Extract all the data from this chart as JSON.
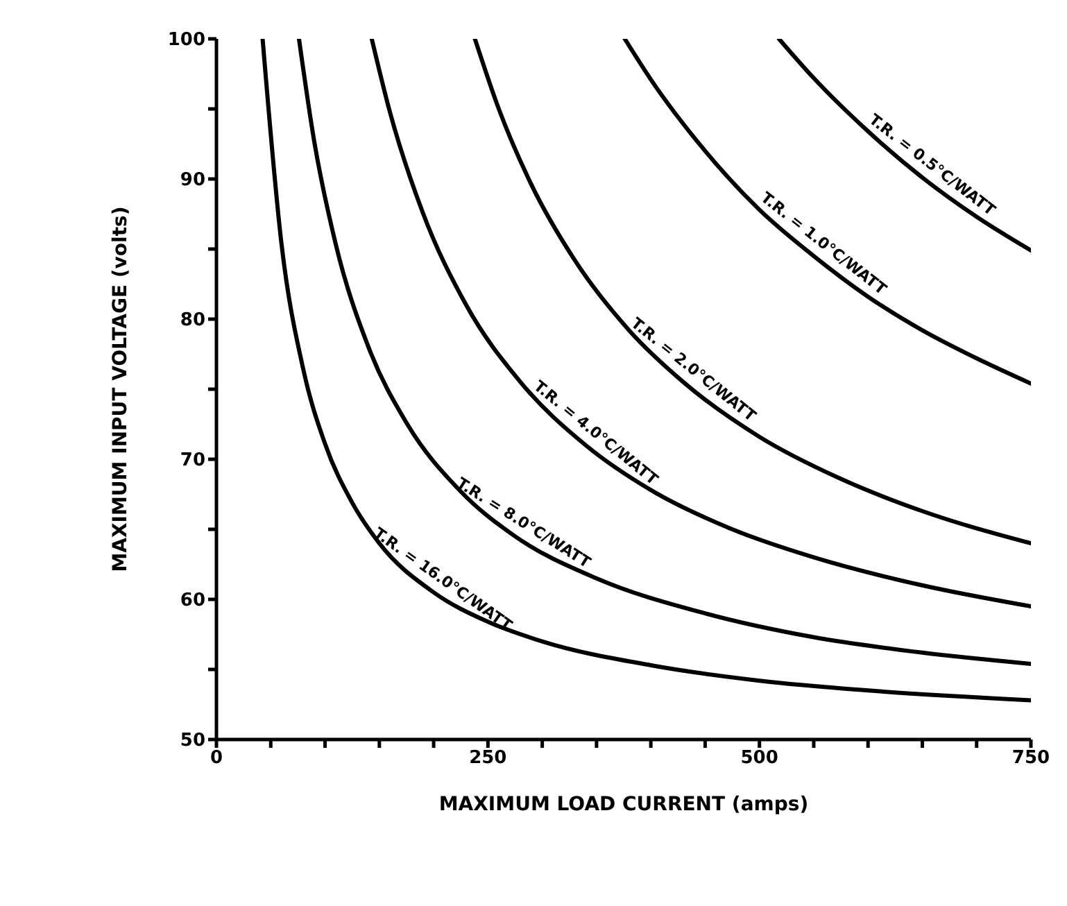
{
  "chart_data": {
    "type": "line",
    "xlabel": "MAXIMUM  LOAD  CURRENT  (amps)",
    "ylabel": "MAXIMUM  INPUT  VOLTAGE  (volts)",
    "xlim": [
      0,
      750
    ],
    "ylim": [
      50,
      100
    ],
    "xticks": [
      0,
      {
        "value": 50,
        "label": null
      },
      {
        "value": 100,
        "label": null
      },
      {
        "value": 150,
        "label": null
      },
      {
        "value": 200,
        "label": null
      },
      250,
      {
        "value": 300,
        "label": null
      },
      {
        "value": 350,
        "label": null
      },
      {
        "value": 400,
        "label": null
      },
      {
        "value": 450,
        "label": null
      },
      500,
      {
        "value": 550,
        "label": null
      },
      {
        "value": 600,
        "label": null
      },
      {
        "value": 650,
        "label": null
      },
      {
        "value": 700,
        "label": null
      },
      750
    ],
    "yticks": [
      50,
      {
        "value": 55,
        "label": null
      },
      60,
      {
        "value": 65,
        "label": null
      },
      70,
      {
        "value": 75,
        "label": null
      },
      80,
      {
        "value": 85,
        "label": null
      },
      90,
      {
        "value": 95,
        "label": null
      },
      100
    ],
    "grid": false,
    "legend": false,
    "marker": "none",
    "line_style": "solid",
    "series": [
      {
        "name": "T.R. = 0.5°C/WATT",
        "color": "#000000",
        "x": [
          518,
          550,
          600,
          650,
          700,
          750
        ],
        "values": [
          100,
          97.2,
          93.4,
          90.1,
          87.3,
          84.9
        ]
      },
      {
        "name": "T.R. = 1.0°C/WATT",
        "color": "#000000",
        "x": [
          376,
          400,
          450,
          500,
          550,
          600,
          650,
          700,
          750
        ],
        "values": [
          100,
          97.1,
          92,
          87.8,
          84.5,
          81.6,
          79.2,
          77.2,
          75.4
        ]
      },
      {
        "name": "T.R. = 2.0°C/WATT",
        "color": "#000000",
        "x": [
          238,
          260,
          290,
          330,
          380,
          430,
          500,
          575,
          650,
          750
        ],
        "values": [
          100,
          95,
          89.6,
          84.2,
          79.2,
          75.5,
          71.6,
          68.6,
          66.3,
          64
        ]
      },
      {
        "name": "T.R. = 4.0°C/WATT",
        "color": "#000000",
        "x": [
          143,
          160,
          190,
          230,
          280,
          340,
          400,
          475,
          550,
          650,
          750
        ],
        "values": [
          100,
          94.7,
          87.6,
          81,
          75.5,
          71,
          67.8,
          65,
          63,
          61,
          59.5
        ]
      },
      {
        "name": "T.R. = 8.0°C/WATT",
        "color": "#000000",
        "x": [
          76,
          90,
          110,
          140,
          175,
          225,
          275,
          350,
          450,
          550,
          650,
          750
        ],
        "values": [
          100,
          92.7,
          85.3,
          78,
          72.6,
          67.7,
          64.5,
          61.5,
          59,
          57.3,
          56.2,
          55.4
        ]
      },
      {
        "name": "T.R. = 16.0°C/WATT",
        "color": "#000000",
        "x": [
          42.5,
          60,
          80,
          100,
          125,
          150,
          200,
          250,
          300,
          400,
          500,
          600,
          750
        ],
        "values": [
          100,
          85.3,
          76.4,
          71.1,
          66.9,
          64,
          60.5,
          58.4,
          57,
          55.3,
          54.2,
          53.5,
          52.8
        ]
      }
    ]
  }
}
